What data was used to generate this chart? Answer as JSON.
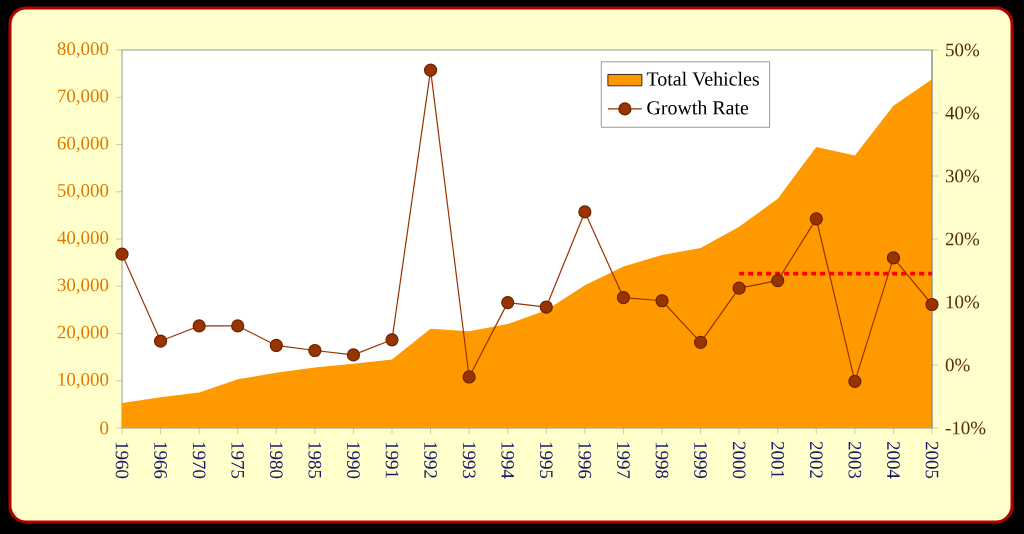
{
  "chart_data": {
    "type": "area",
    "categories": [
      "1960",
      "1966",
      "1970",
      "1975",
      "1980",
      "1985",
      "1990",
      "1991",
      "1992",
      "1993",
      "1994",
      "1995",
      "1996",
      "1997",
      "1998",
      "1999",
      "2000",
      "2001",
      "2002",
      "2003",
      "2004",
      "2005"
    ],
    "series": [
      {
        "name": "Total Vehicles",
        "color": "#ff9900",
        "values": [
          5300,
          6500,
          7500,
          10300,
          11700,
          12800,
          13600,
          14500,
          21000,
          20500,
          22000,
          24900,
          30200,
          34200,
          36600,
          38100,
          42600,
          48500,
          59500,
          57700,
          68200,
          73800
        ]
      },
      {
        "name": "Growth Rate",
        "type": "line",
        "axis": "y2",
        "color": "#993300",
        "marker": "circle",
        "values": [
          17.6,
          3.8,
          6.2,
          6.2,
          3.1,
          2.3,
          1.6,
          4.0,
          46.8,
          -1.9,
          9.9,
          9.2,
          24.3,
          10.7,
          10.2,
          3.6,
          12.2,
          13.4,
          23.2,
          -2.6,
          17.0,
          9.6
        ]
      },
      {
        "type": "line",
        "axis": "y2",
        "color": "#ff0000",
        "marker": "none",
        "line_style": "dotted",
        "values": [
          null,
          null,
          null,
          null,
          null,
          null,
          null,
          null,
          null,
          null,
          null,
          null,
          null,
          null,
          null,
          null,
          14.5,
          14.5,
          14.5,
          14.5,
          14.5,
          14.5
        ]
      }
    ],
    "ylim": [
      0,
      80000
    ],
    "yticks": [
      0,
      {
        "value": 10000,
        "label": "10,000"
      },
      {
        "value": 20000,
        "label": "20,000"
      },
      {
        "value": 30000,
        "label": "30,000"
      },
      {
        "value": 40000,
        "label": "40,000"
      },
      {
        "value": 50000,
        "label": "50,000"
      },
      {
        "value": 60000,
        "label": "60,000"
      },
      {
        "value": 70000,
        "label": "70,000"
      },
      {
        "value": 80000,
        "label": "80,000"
      }
    ],
    "y2lim": [
      -10,
      50
    ],
    "y2ticks": [
      {
        "value": -10,
        "label": "-10%"
      },
      {
        "value": 0,
        "label": "0%"
      },
      {
        "value": 10,
        "label": "10%"
      },
      {
        "value": 20,
        "label": "20%"
      },
      {
        "value": 30,
        "label": "30%"
      },
      {
        "value": 40,
        "label": "40%"
      },
      {
        "value": 50,
        "label": "50%"
      }
    ],
    "legend": "top right"
  }
}
